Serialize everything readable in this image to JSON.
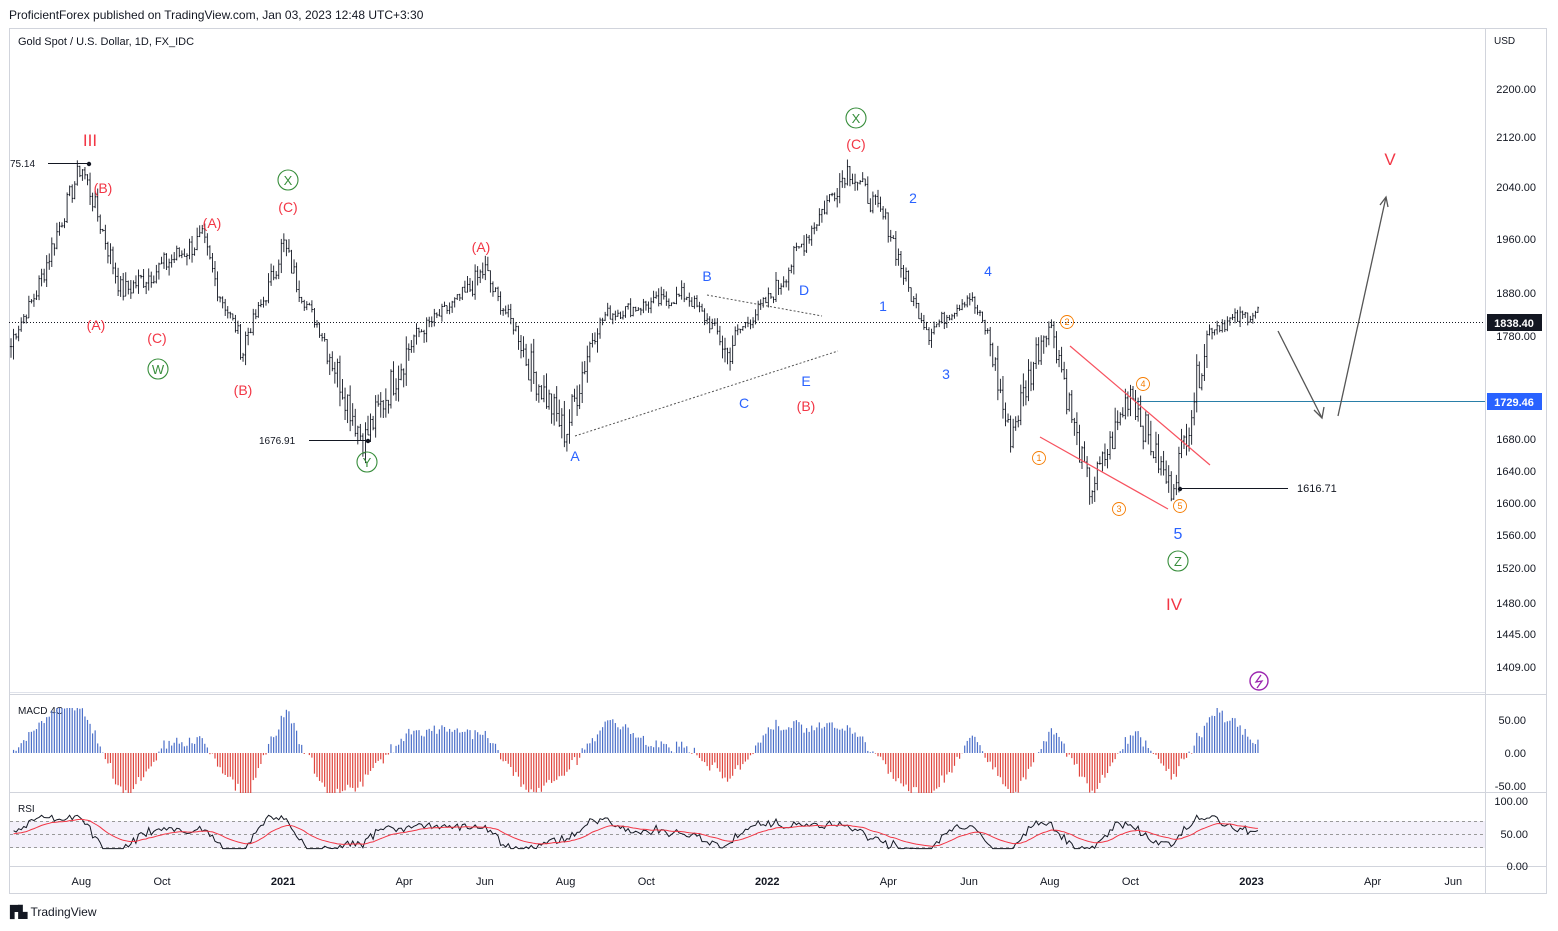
{
  "header": {
    "published": "ProficientForex published on TradingView.com, Jan 03, 2023 12:48 UTC+3:30"
  },
  "footer": {
    "brand": "TradingView"
  },
  "chart_data": {
    "type": "candlestick",
    "title": "Gold Spot / U.S. Dollar, 1D, FX_IDC",
    "currency": "USD",
    "y_ticks": [
      "2200.00",
      "2120.00",
      "2040.00",
      "1960.00",
      "1880.00",
      "1780.00",
      "1680.00",
      "1640.00",
      "1600.00",
      "1560.00",
      "1520.00",
      "1480.00",
      "1445.00",
      "1409.00"
    ],
    "x_ticks": [
      "Aug",
      "Oct",
      "2021",
      "Apr",
      "Jun",
      "Aug",
      "Oct",
      "2022",
      "Apr",
      "Jun",
      "Aug",
      "Oct",
      "2023",
      "Apr",
      "Jun"
    ],
    "price_labels": [
      {
        "text": "1838.40",
        "bg": "#131722"
      },
      {
        "text": "1729.46",
        "bg": "#2962ff"
      }
    ],
    "price_annotations": [
      "75.14",
      "1676.91",
      "1616.71"
    ],
    "price_path": [
      [
        "Jul 2020",
        1770
      ],
      [
        "Aug 2020",
        2075.14
      ],
      [
        "Sep 2020",
        1880
      ],
      [
        "Oct 2020",
        1920
      ],
      [
        "Nov 2020",
        1960
      ],
      [
        "Dec 2020",
        1765
      ],
      [
        "Jan 2021",
        1955
      ],
      [
        "Feb 2021",
        1780
      ],
      [
        "Mar 2021",
        1676.91
      ],
      [
        "Apr 2021",
        1760
      ],
      [
        "Jun 2021",
        1915
      ],
      [
        "Jul 2021",
        1760
      ],
      [
        "Aug 2021",
        1685
      ],
      [
        "Sep 2021",
        1830
      ],
      [
        "Nov 2021",
        1875
      ],
      [
        "Dec 2021",
        1760
      ],
      [
        "Mar 2022",
        2070
      ],
      [
        "Apr 2022",
        1980
      ],
      [
        "May 2022",
        1790
      ],
      [
        "Jun 2022",
        1875
      ],
      [
        "Jul 2022",
        1680
      ],
      [
        "Aug 2022",
        1805
      ],
      [
        "Sep 2022",
        1615
      ],
      [
        "Oct 2022",
        1730
      ],
      [
        "Nov 2022",
        1616.71
      ],
      [
        "Dec 2022",
        1800
      ],
      [
        "Jan 2023",
        1838.4
      ]
    ],
    "wave_labels": {
      "red": [
        "III",
        "(B)",
        "(A)",
        "(A)",
        "(C)",
        "(C)",
        "(B)",
        "(A)",
        "(C)",
        "(B)",
        "IV",
        "V"
      ],
      "green": [
        "X",
        "W",
        "Y",
        "X",
        "Z"
      ],
      "blue": [
        "B",
        "D",
        "A",
        "C",
        "E",
        "1",
        "2",
        "3",
        "4",
        "5"
      ],
      "orange": [
        "2",
        "4",
        "1",
        "3",
        "5"
      ]
    },
    "indicators": [
      {
        "name": "MACD 4C",
        "ticks": [
          "50.00",
          "0.00",
          "-50.00"
        ]
      },
      {
        "name": "RSI",
        "ticks": [
          "100.00",
          "50.00",
          "0.00"
        ]
      }
    ],
    "colors": {
      "candles": "#131722",
      "labels_red": "#f23645",
      "labels_blue": "#2962ff",
      "labels_green": "#388e3c",
      "labels_orange": "#f57c00",
      "macd_pos": "#4b6fc9",
      "macd_neg": "#e0463f",
      "rsi_line": "#131722",
      "rsi_ma": "#f23645"
    }
  }
}
